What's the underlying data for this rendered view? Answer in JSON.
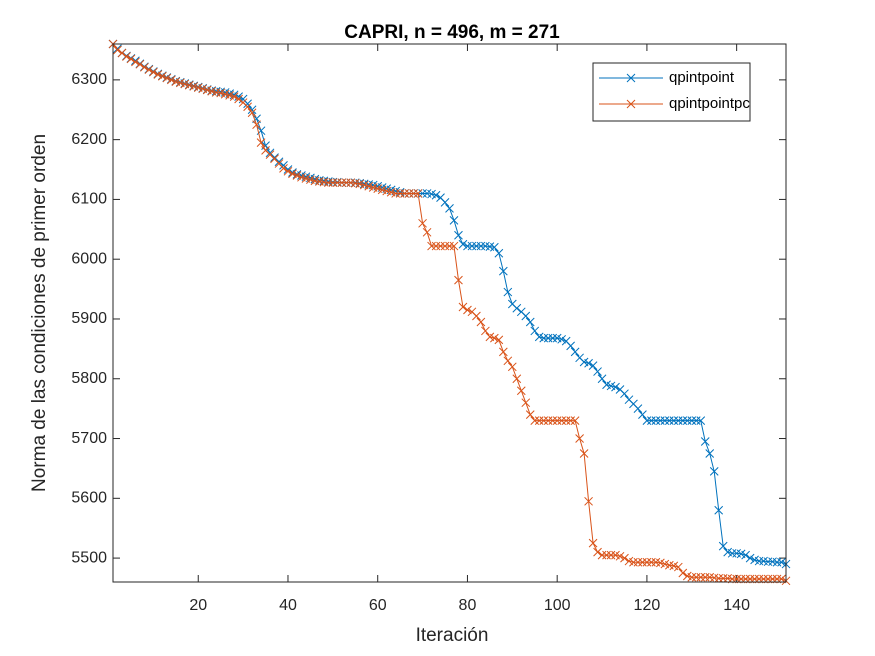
{
  "chart_data": {
    "type": "line",
    "title": "CAPRI, n = 496, m = 271",
    "x_label": "Iteración",
    "y_label": "Norma de las condiciones de primer orden",
    "x": [
      1,
      2,
      3,
      4,
      5,
      6,
      7,
      8,
      9,
      10,
      11,
      12,
      13,
      14,
      15,
      16,
      17,
      18,
      19,
      20,
      21,
      22,
      23,
      24,
      25,
      26,
      27,
      28,
      29,
      30,
      31,
      32,
      33,
      34,
      35,
      36,
      37,
      38,
      39,
      40,
      41,
      42,
      43,
      44,
      45,
      46,
      47,
      48,
      49,
      50,
      51,
      52,
      53,
      54,
      55,
      56,
      57,
      58,
      59,
      60,
      61,
      62,
      63,
      64,
      65,
      66,
      67,
      68,
      69,
      70,
      71,
      72,
      73,
      74,
      75,
      76,
      77,
      78,
      79,
      80,
      81,
      82,
      83,
      84,
      85,
      86,
      87,
      88,
      89,
      90,
      91,
      92,
      93,
      94,
      95,
      96,
      97,
      98,
      99,
      100,
      101,
      102,
      103,
      104,
      105,
      106,
      107,
      108,
      109,
      110,
      111,
      112,
      113,
      114,
      115,
      116,
      117,
      118,
      119,
      120,
      121,
      122,
      123,
      124,
      125,
      126,
      127,
      128,
      129,
      130,
      131,
      132,
      133,
      134,
      135,
      136,
      137,
      138,
      139,
      140,
      141,
      142,
      143,
      144,
      145,
      146,
      147,
      148,
      149,
      150,
      151
    ],
    "series": [
      {
        "name": "qpintpoint",
        "color": "#0072bd",
        "values": [
          6360,
          6352,
          6345,
          6340,
          6336,
          6332,
          6327,
          6322,
          6318,
          6314,
          6310,
          6307,
          6304,
          6301,
          6298,
          6296,
          6294,
          6292,
          6290,
          6288,
          6286,
          6284,
          6282,
          6281,
          6280,
          6279,
          6277,
          6275,
          6272,
          6268,
          6260,
          6250,
          6235,
          6215,
          6190,
          6178,
          6170,
          6163,
          6157,
          6150,
          6145,
          6142,
          6140,
          6138,
          6136,
          6134,
          6132,
          6131,
          6130,
          6129,
          6129,
          6128,
          6128,
          6128,
          6128,
          6127,
          6126,
          6125,
          6124,
          6122,
          6120,
          6118,
          6116,
          6114,
          6112,
          6110,
          6110,
          6110,
          6110,
          6110,
          6110,
          6109,
          6107,
          6103,
          6095,
          6085,
          6065,
          6040,
          6025,
          6022,
          6022,
          6022,
          6022,
          6022,
          6021,
          6020,
          6010,
          5980,
          5945,
          5925,
          5918,
          5912,
          5905,
          5895,
          5880,
          5870,
          5868,
          5868,
          5868,
          5868,
          5866,
          5863,
          5855,
          5845,
          5835,
          5828,
          5826,
          5822,
          5812,
          5800,
          5790,
          5788,
          5786,
          5782,
          5775,
          5765,
          5758,
          5750,
          5740,
          5730,
          5730,
          5730,
          5730,
          5730,
          5730,
          5730,
          5730,
          5730,
          5730,
          5730,
          5730,
          5730,
          5695,
          5675,
          5645,
          5580,
          5520,
          5510,
          5508,
          5508,
          5507,
          5505,
          5500,
          5497,
          5495,
          5495,
          5494,
          5494,
          5493,
          5493,
          5490
        ]
      },
      {
        "name": "qpintpointpc",
        "color": "#d95319",
        "values": [
          6360,
          6350,
          6345,
          6339,
          6335,
          6330,
          6326,
          6321,
          6317,
          6313,
          6309,
          6306,
          6303,
          6300,
          6297,
          6295,
          6293,
          6291,
          6289,
          6287,
          6285,
          6283,
          6281,
          6279,
          6278,
          6276,
          6274,
          6272,
          6268,
          6262,
          6255,
          6245,
          6225,
          6195,
          6182,
          6175,
          6168,
          6160,
          6152,
          6147,
          6143,
          6140,
          6137,
          6135,
          6133,
          6131,
          6130,
          6129,
          6128,
          6128,
          6128,
          6128,
          6128,
          6128,
          6127,
          6126,
          6124,
          6122,
          6120,
          6118,
          6116,
          6114,
          6112,
          6110,
          6110,
          6110,
          6110,
          6110,
          6110,
          6060,
          6045,
          6022,
          6022,
          6022,
          6022,
          6022,
          6022,
          5965,
          5920,
          5915,
          5912,
          5905,
          5895,
          5880,
          5870,
          5868,
          5865,
          5845,
          5830,
          5820,
          5800,
          5780,
          5760,
          5740,
          5730,
          5730,
          5730,
          5730,
          5730,
          5730,
          5730,
          5730,
          5730,
          5730,
          5700,
          5675,
          5595,
          5525,
          5510,
          5505,
          5505,
          5505,
          5505,
          5503,
          5500,
          5495,
          5493,
          5493,
          5493,
          5493,
          5493,
          5493,
          5492,
          5490,
          5488,
          5487,
          5485,
          5475,
          5470,
          5468,
          5468,
          5468,
          5468,
          5468,
          5467,
          5466,
          5466,
          5466,
          5465,
          5465,
          5465,
          5465,
          5465,
          5465,
          5465,
          5465,
          5465,
          5465,
          5465,
          5465,
          5462
        ]
      }
    ],
    "xlim": [
      1,
      151
    ],
    "ylim": [
      5460,
      6360
    ],
    "xticks": [
      20,
      40,
      60,
      80,
      100,
      120,
      140
    ],
    "yticks": [
      5500,
      5600,
      5700,
      5800,
      5900,
      6000,
      6100,
      6200,
      6300
    ],
    "marker": "x",
    "legend_position": "top-right"
  }
}
